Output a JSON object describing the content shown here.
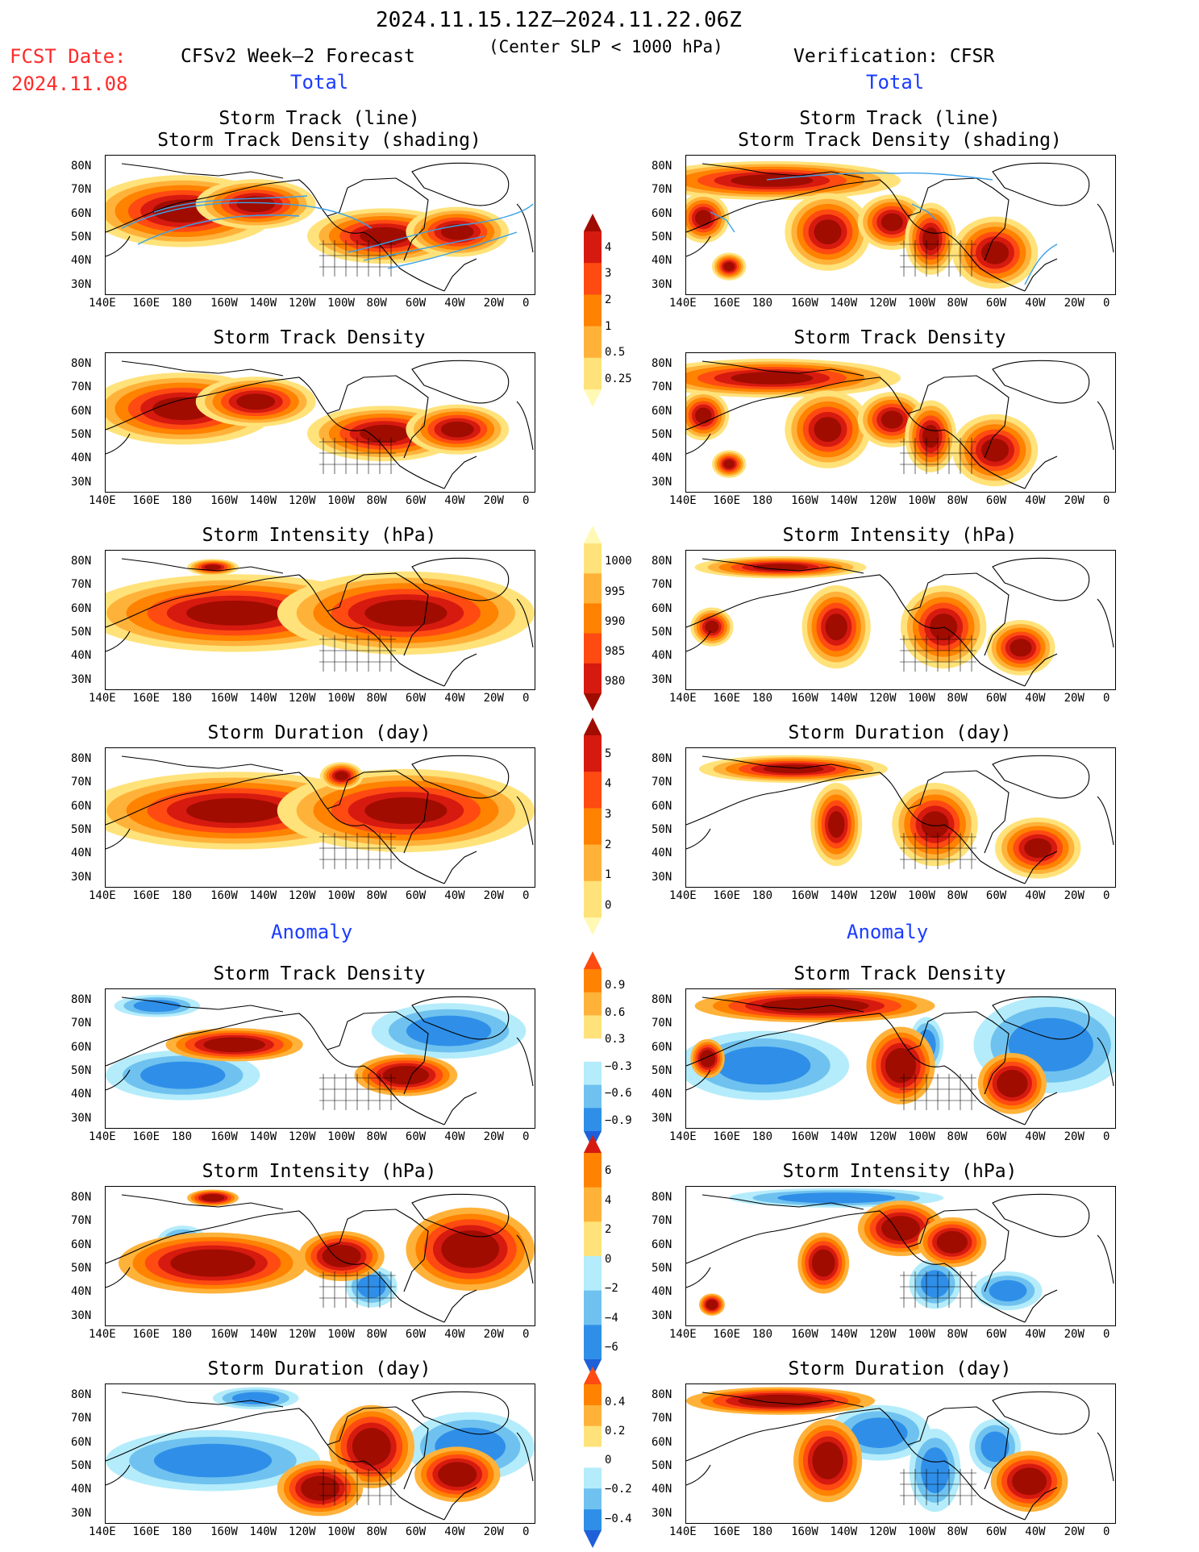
{
  "header": {
    "title": "2024.11.15.12Z–2024.11.22.06Z",
    "subtitle": "(Center SLP < 1000 hPa)",
    "fcst_label": "FCST Date:",
    "fcst_date": "2024.11.08",
    "left_model": "CFSv2 Week–2 Forecast",
    "right_model": "Verification: CFSR",
    "total_left": "Total",
    "total_right": "Total",
    "anomaly_left": "Anomaly",
    "anomaly_right": "Anomaly"
  },
  "axes": {
    "lat_labels": [
      "80N",
      "70N",
      "60N",
      "50N",
      "40N",
      "30N"
    ],
    "lon_labels": [
      "140E",
      "160E",
      "180",
      "160W",
      "140W",
      "120W",
      "100W",
      "80W",
      "60W",
      "40W",
      "20W",
      "0"
    ]
  },
  "panel_titles": {
    "track1": "Storm Track (line)",
    "track2": "Storm Track Density (shading)",
    "density": "Storm Track Density",
    "intensity": "Storm Intensity (hPa)",
    "duration": "Storm Duration (day)"
  },
  "colorbars": {
    "density_total": [
      "4",
      "3",
      "2",
      "1",
      "0.5",
      "0.25"
    ],
    "intensity_total": [
      "1000",
      "995",
      "990",
      "985",
      "980"
    ],
    "duration_total": [
      "5",
      "4",
      "3",
      "2",
      "1",
      "0"
    ],
    "density_anom": [
      "0.9",
      "0.6",
      "0.3",
      "−0.3",
      "−0.6",
      "−0.9"
    ],
    "intensity_anom": [
      "6",
      "4",
      "2",
      "0",
      "−2",
      "−4",
      "−6"
    ],
    "duration_anom": [
      "0.4",
      "0.2",
      "0",
      "−0.2",
      "−0.4"
    ]
  },
  "colors": {
    "warm": [
      "#fff9b5",
      "#ffe27a",
      "#ffb23a",
      "#ff8200",
      "#ff4a12",
      "#d61a10",
      "#a00c00"
    ],
    "cool": [
      "#ffffff",
      "#b4ecfb",
      "#6fc2ef",
      "#2f8fe8",
      "#1f5fd8"
    ],
    "track_line": "#3aa0e8"
  }
}
